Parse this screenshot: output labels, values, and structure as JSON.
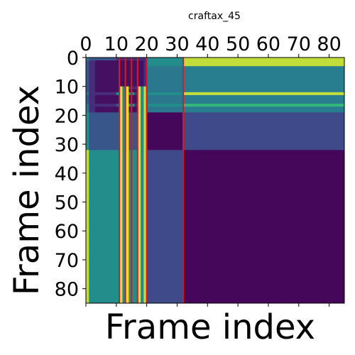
{
  "chart_data": {
    "type": "heatmap",
    "title": "craftax_45",
    "xlabel": "Frame index",
    "ylabel": "Frame index",
    "x_range": [
      0,
      85
    ],
    "y_range": [
      0,
      85
    ],
    "x_tick_position": "top",
    "x_ticks": [
      0,
      10,
      20,
      30,
      40,
      50,
      60,
      70,
      80
    ],
    "y_ticks": [
      0,
      10,
      20,
      30,
      40,
      50,
      60,
      70,
      80
    ],
    "colormap": "viridis",
    "grid": false,
    "segment_boundaries": [
      0,
      1,
      3,
      10,
      11,
      12,
      13,
      16,
      17,
      19,
      20,
      32,
      33,
      85
    ],
    "segment_values": [
      [
        0.45,
        0.3,
        0.3,
        0.15,
        0.15,
        0.15,
        0.15,
        0.15,
        0.15,
        0.15,
        0.55,
        0.95,
        0.95
      ],
      [
        0.3,
        0.15,
        0.05,
        0.05,
        0.05,
        0.05,
        0.05,
        0.05,
        0.05,
        0.15,
        0.55,
        0.95,
        0.95
      ],
      [
        0.3,
        0.15,
        0.05,
        0.05,
        0.05,
        0.05,
        0.05,
        0.05,
        0.05,
        0.15,
        0.45,
        0.48,
        0.48
      ],
      [
        0.3,
        0.15,
        0.05,
        0.05,
        0.15,
        0.05,
        0.15,
        0.15,
        0.15,
        0.2,
        0.45,
        0.48,
        0.48
      ],
      [
        0.3,
        0.15,
        0.05,
        0.05,
        0.05,
        0.05,
        0.05,
        0.05,
        0.05,
        0.15,
        0.45,
        0.48,
        0.48
      ],
      [
        0.45,
        0.15,
        0.15,
        0.55,
        0.15,
        0.55,
        0.55,
        0.15,
        0.55,
        0.45,
        0.55,
        0.95,
        0.95
      ],
      [
        0.3,
        0.15,
        0.05,
        0.05,
        0.05,
        0.15,
        0.05,
        0.05,
        0.05,
        0.15,
        0.45,
        0.48,
        0.48
      ],
      [
        0.45,
        0.15,
        0.15,
        0.3,
        0.15,
        0.3,
        0.55,
        0.15,
        0.55,
        0.45,
        0.55,
        0.75,
        0.75
      ],
      [
        0.45,
        0.15,
        0.05,
        0.05,
        0.05,
        0.05,
        0.05,
        0.05,
        0.05,
        0.15,
        0.45,
        0.48,
        0.48
      ],
      [
        0.55,
        0.3,
        0.3,
        0.3,
        0.3,
        0.3,
        0.3,
        0.3,
        0.3,
        0.3,
        0.02,
        0.25,
        0.25
      ],
      [
        0.55,
        0.3,
        0.3,
        0.3,
        0.3,
        0.3,
        0.3,
        0.3,
        0.3,
        0.3,
        0.02,
        0.25,
        0.25
      ],
      [
        0.95,
        0.55,
        0.55,
        0.55,
        0.55,
        0.55,
        0.55,
        0.55,
        0.55,
        0.55,
        0.25,
        0.02,
        0.02
      ],
      [
        0.95,
        0.55,
        0.55,
        0.55,
        0.55,
        0.55,
        0.55,
        0.55,
        0.55,
        0.55,
        0.25,
        0.02,
        0.02
      ]
    ],
    "column_override_values": {
      "11": 0.98,
      "12": 0.55,
      "13": 0.98,
      "17": 0.98,
      "18": 0.55,
      "19": 0.95
    },
    "red_vertical_lines_at": [
      11,
      13,
      15,
      17,
      20,
      32
    ]
  }
}
